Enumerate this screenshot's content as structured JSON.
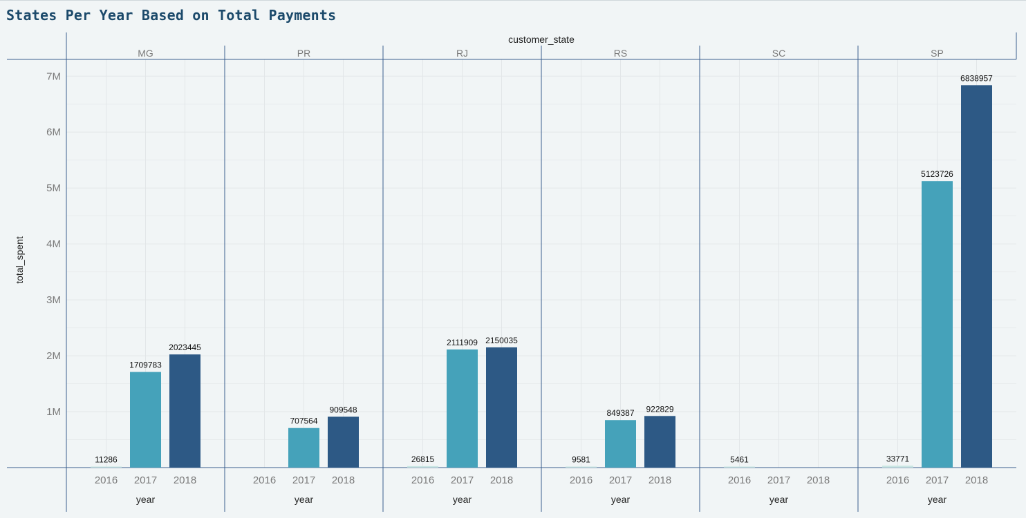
{
  "page": {
    "title": "States Per Year Based on Total Payments"
  },
  "chart_data": {
    "type": "bar",
    "title": "States Per Year Based on Total Payments",
    "facet_label": "customer_state",
    "facets": [
      "MG",
      "PR",
      "RJ",
      "RS",
      "SC",
      "SP"
    ],
    "categories": [
      "2016",
      "2017",
      "2018"
    ],
    "xlabel": "year",
    "ylabel": "total_spent",
    "ylim": [
      0,
      7300000
    ],
    "yticks": [
      1000000,
      2000000,
      3000000,
      4000000,
      5000000,
      6000000,
      7000000
    ],
    "ytick_labels": [
      "1M",
      "2M",
      "3M",
      "4M",
      "5M",
      "6M",
      "7M"
    ],
    "colors": {
      "2016": "#c9e6e3",
      "2017": "#45a2ba",
      "2018": "#2d5985"
    },
    "grid": true,
    "values": {
      "MG": [
        11286,
        1709783,
        2023445
      ],
      "PR": [
        null,
        707564,
        909548
      ],
      "RJ": [
        26815,
        2111909,
        2150035
      ],
      "RS": [
        9581,
        849387,
        922829
      ],
      "SC": [
        5461,
        null,
        null
      ],
      "SP": [
        33771,
        5123726,
        6838957
      ]
    }
  }
}
